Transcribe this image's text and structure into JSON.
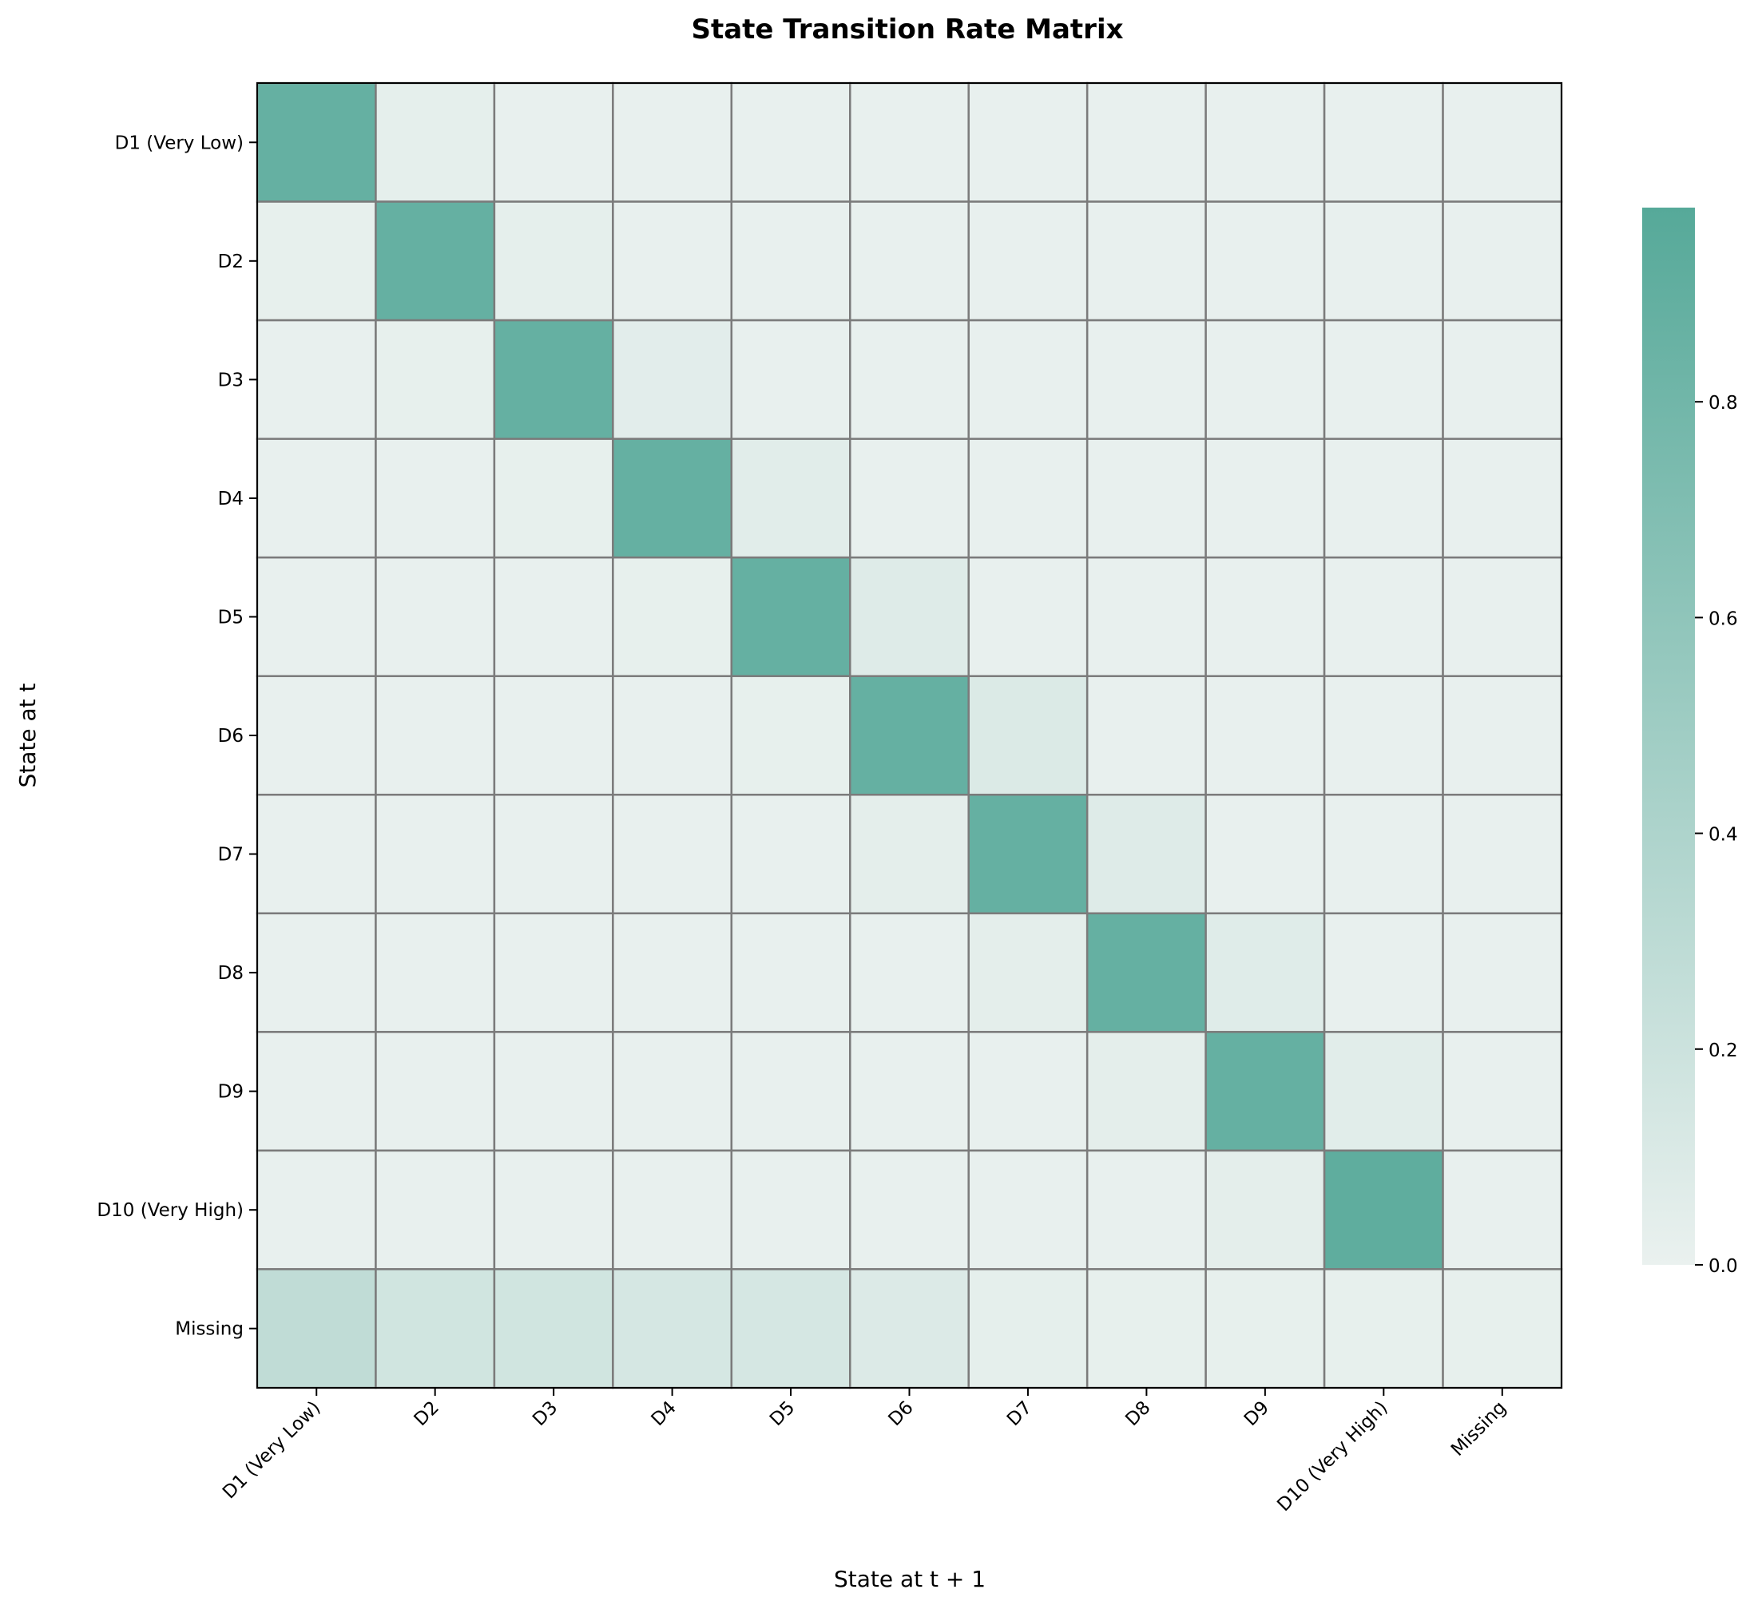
{
  "chart_data": {
    "type": "heatmap",
    "title": "State Transition Rate Matrix",
    "xlabel": "State at t + 1",
    "ylabel": "State at t",
    "row_labels": [
      "D1 (Very Low)",
      "D2",
      "D3",
      "D4",
      "D5",
      "D6",
      "D7",
      "D8",
      "D9",
      "D10 (Very High)",
      "Missing"
    ],
    "col_labels": [
      "D1 (Very Low)",
      "D2",
      "D3",
      "D4",
      "D5",
      "D6",
      "D7",
      "D8",
      "D9",
      "D10 (Very High)",
      "Missing"
    ],
    "values": [
      [
        0.88,
        0.03,
        0.01,
        0.01,
        0.01,
        0.01,
        0.01,
        0.01,
        0.01,
        0.01,
        0.01
      ],
      [
        0.02,
        0.88,
        0.03,
        0.01,
        0.01,
        0.01,
        0.01,
        0.01,
        0.01,
        0.01,
        0.01
      ],
      [
        0.01,
        0.02,
        0.88,
        0.05,
        0.01,
        0.01,
        0.01,
        0.01,
        0.01,
        0.01,
        0.01
      ],
      [
        0.01,
        0.01,
        0.02,
        0.88,
        0.06,
        0.01,
        0.01,
        0.01,
        0.01,
        0.01,
        0.01
      ],
      [
        0.01,
        0.01,
        0.01,
        0.02,
        0.88,
        0.08,
        0.01,
        0.01,
        0.01,
        0.01,
        0.01
      ],
      [
        0.01,
        0.01,
        0.01,
        0.01,
        0.02,
        0.88,
        0.1,
        0.01,
        0.01,
        0.01,
        0.01
      ],
      [
        0.01,
        0.01,
        0.01,
        0.01,
        0.01,
        0.04,
        0.88,
        0.08,
        0.01,
        0.01,
        0.01
      ],
      [
        0.01,
        0.01,
        0.01,
        0.01,
        0.01,
        0.01,
        0.04,
        0.88,
        0.07,
        0.01,
        0.01
      ],
      [
        0.01,
        0.01,
        0.01,
        0.01,
        0.01,
        0.01,
        0.01,
        0.04,
        0.88,
        0.06,
        0.01
      ],
      [
        0.01,
        0.01,
        0.01,
        0.01,
        0.01,
        0.01,
        0.01,
        0.01,
        0.04,
        0.92,
        0.01
      ],
      [
        0.28,
        0.17,
        0.17,
        0.14,
        0.14,
        0.09,
        0.03,
        0.02,
        0.02,
        0.02,
        0.02
      ]
    ],
    "colorbar": {
      "min": 0.0,
      "max": 0.98,
      "ticks": [
        0.0,
        0.2,
        0.4,
        0.6,
        0.8
      ],
      "tick_labels": [
        "0.0",
        "0.2",
        "0.4",
        "0.6",
        "0.8"
      ]
    },
    "colors": {
      "low": "#eaf1ef",
      "high": "#56a999",
      "cell_border": "#7b7b7b",
      "frame": "#000000"
    }
  }
}
